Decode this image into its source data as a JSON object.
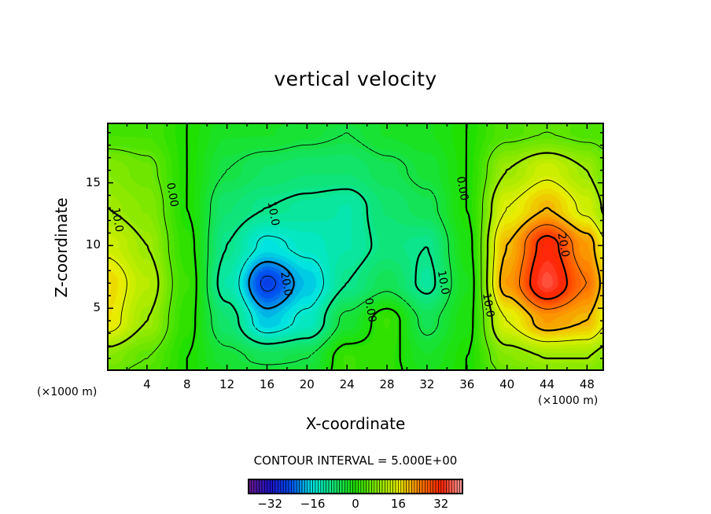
{
  "chart_data": {
    "type": "heatmap",
    "subtype": "filled-contour",
    "title": "vertical velocity",
    "xlabel": "X-coordinate",
    "ylabel": "Z-coordinate",
    "x_unit_label": "(×1000 m)",
    "y_unit_label": "(×1000 m)",
    "xlim": [
      0,
      49.7
    ],
    "ylim": [
      0,
      19.8
    ],
    "x_ticks": [
      4,
      8,
      12,
      16,
      20,
      24,
      28,
      32,
      36,
      40,
      44,
      48
    ],
    "y_ticks": [
      5,
      10,
      15
    ],
    "contour_interval_text": "CONTOUR INTERVAL = 5.000E+00",
    "contour_interval": 5,
    "grid_x": [
      0,
      4,
      8,
      12,
      16,
      20,
      24,
      28,
      32,
      36,
      40,
      44,
      48,
      50
    ],
    "grid_z": [
      0,
      1,
      4,
      7,
      10,
      13,
      16,
      19,
      20
    ],
    "values": [
      [
        6,
        4,
        0,
        -3,
        -4,
        -4,
        2,
        1,
        -2,
        0,
        6,
        8,
        8,
        6
      ],
      [
        8,
        5,
        0,
        -4,
        -6,
        -5,
        2,
        1,
        -3,
        0,
        8,
        10,
        10,
        8
      ],
      [
        17,
        10,
        1,
        -8,
        -18,
        -14,
        -4,
        2,
        -6,
        -1,
        15,
        22,
        20,
        15
      ],
      [
        18,
        12,
        2,
        -12,
        -26,
        -18,
        -10,
        -6,
        -11,
        -2,
        22,
        35,
        25,
        18
      ],
      [
        14,
        10,
        1,
        -10,
        -16,
        -14,
        -12,
        -9,
        -10,
        -1,
        20,
        32,
        22,
        15
      ],
      [
        10,
        8,
        0,
        -8,
        -10,
        -11,
        -12,
        -8,
        -6,
        0,
        15,
        20,
        14,
        9
      ],
      [
        8,
        6,
        0,
        -5,
        -7,
        -8,
        -8,
        -6,
        -4,
        0,
        10,
        14,
        10,
        6
      ],
      [
        3,
        3,
        0,
        -3,
        -3,
        -4,
        -5,
        -3,
        -2,
        0,
        4,
        5,
        4,
        4
      ],
      [
        3,
        3,
        0,
        -2,
        -3,
        -3,
        -4,
        -3,
        -2,
        0,
        4,
        5,
        4,
        4
      ]
    ],
    "contour_labels": [
      {
        "text": "10.0",
        "x": 0.7,
        "z": 12
      },
      {
        "text": "0.00",
        "x": 6.2,
        "z": 14
      },
      {
        "text": "10.0",
        "x": 16.3,
        "z": 12.5
      },
      {
        "text": "20.0",
        "x": 17.6,
        "z": 6.9
      },
      {
        "text": "0.00",
        "x": 26,
        "z": 4.8
      },
      {
        "text": "10.0",
        "x": 33.3,
        "z": 7
      },
      {
        "text": "0.00",
        "x": 35.2,
        "z": 14.5
      },
      {
        "text": "10.0",
        "x": 37.8,
        "z": 5.2
      },
      {
        "text": "20.0",
        "x": 45.3,
        "z": 10
      }
    ],
    "colorbar": {
      "range": [
        -40,
        40
      ],
      "tick_labels": [
        "-32",
        "-16",
        "0",
        "16",
        "32"
      ],
      "tick_values": [
        -32,
        -16,
        0,
        16,
        32
      ]
    },
    "colors": {
      "stops": [
        "#6a1a8a",
        "#1a10c8",
        "#0050f0",
        "#00e8e0",
        "#20e000",
        "#e8f000",
        "#ff8000",
        "#ff2000",
        "#ffa0a0"
      ],
      "stop_values": [
        -40,
        -32,
        -24,
        -16,
        0,
        16,
        24,
        32,
        40
      ]
    }
  }
}
